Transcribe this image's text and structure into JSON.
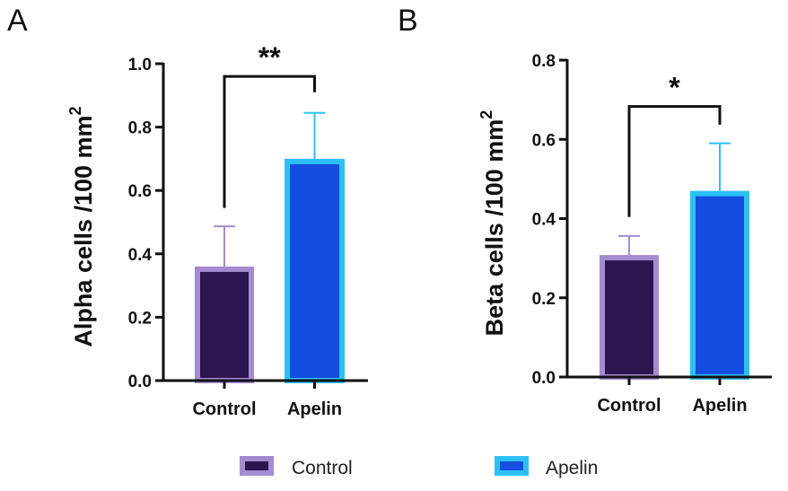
{
  "colors": {
    "control_fill": "#2c1650",
    "control_edge": "#a58bd0",
    "apelin_fill": "#154de0",
    "apelin_edge": "#2ec0f4",
    "axis": "#111111"
  },
  "legend": [
    {
      "label": "Control",
      "series": "control"
    },
    {
      "label": "Apelin",
      "series": "apelin"
    }
  ],
  "chart_data": [
    {
      "type": "bar",
      "panel": "A",
      "title": "",
      "xlabel": "",
      "ylabel": "Alpha cells /100 mm",
      "ylabel_sup": "2",
      "categories": [
        "Control",
        "Apelin"
      ],
      "values": [
        0.36,
        0.7
      ],
      "error_upper": [
        0.487,
        0.845
      ],
      "ylim": [
        0,
        1.0
      ],
      "yticks": [
        "0.0",
        "0.2",
        "0.4",
        "0.6",
        "0.8",
        "1.0"
      ],
      "significance": {
        "label": "**",
        "between": [
          "Control",
          "Apelin"
        ],
        "bracket_y": 0.96,
        "left_leg_end": 0.545,
        "right_leg_end": 0.91
      },
      "grid": false
    },
    {
      "type": "bar",
      "panel": "B",
      "title": "",
      "xlabel": "",
      "ylabel": "Beta cells /100 mm",
      "ylabel_sup": "2",
      "categories": [
        "Control",
        "Apelin"
      ],
      "values": [
        0.308,
        0.47
      ],
      "error_upper": [
        0.356,
        0.59
      ],
      "ylim": [
        0,
        0.8
      ],
      "yticks": [
        "0.0",
        "0.2",
        "0.4",
        "0.6",
        "0.8"
      ],
      "significance": {
        "label": "*",
        "between": [
          "Control",
          "Apelin"
        ],
        "bracket_y": 0.683,
        "left_leg_end": 0.404,
        "right_leg_end": 0.637
      },
      "grid": false
    }
  ]
}
